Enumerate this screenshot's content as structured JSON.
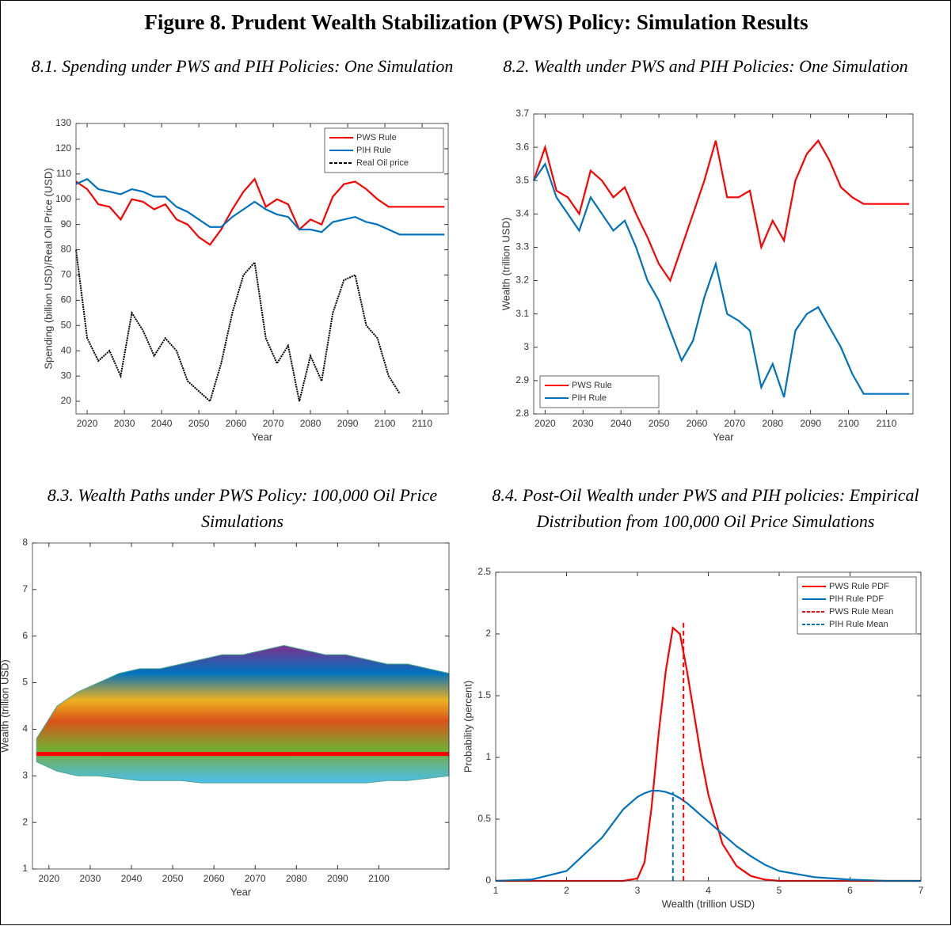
{
  "title": "Figure 8. Prudent Wealth Stabilization (PWS) Policy: Simulation Results",
  "chart_data": [
    {
      "type": "line",
      "title": "8.1. Spending under PWS and PIH Policies: One Simulation",
      "x_label": "Year",
      "y_label": "Spending (billion USD)/Real Oil Price (USD)",
      "x": [
        2017,
        2020,
        2023,
        2026,
        2029,
        2032,
        2035,
        2038,
        2041,
        2044,
        2047,
        2050,
        2053,
        2056,
        2059,
        2062,
        2065,
        2068,
        2071,
        2074,
        2077,
        2080,
        2083,
        2086,
        2089,
        2092,
        2095,
        2098,
        2101,
        2104,
        2107,
        2110,
        2113,
        2116
      ],
      "xlim": [
        2017,
        2117
      ],
      "xticks": [
        2020,
        2030,
        2040,
        2050,
        2060,
        2070,
        2080,
        2090,
        2100,
        2110
      ],
      "ylim": [
        15,
        130
      ],
      "yticks": [
        20,
        30,
        40,
        50,
        60,
        70,
        80,
        90,
        100,
        110,
        120,
        130
      ],
      "legend": "upper right",
      "series": [
        {
          "name": "PWS Rule",
          "color": "#ff0000",
          "values": [
            107,
            104,
            98,
            97,
            92,
            100,
            99,
            96,
            98,
            92,
            90,
            85,
            82,
            88,
            96,
            103,
            108,
            97,
            100,
            98,
            88,
            92,
            90,
            101,
            106,
            107,
            104,
            100,
            97,
            97,
            97,
            97,
            97,
            97
          ]
        },
        {
          "name": "PIH Rule",
          "color": "#0072bd",
          "values": [
            106,
            108,
            104,
            103,
            102,
            104,
            103,
            101,
            101,
            97,
            95,
            92,
            89,
            89,
            93,
            96,
            99,
            96,
            94,
            93,
            88,
            88,
            87,
            91,
            92,
            93,
            91,
            90,
            88,
            86,
            86,
            86,
            86,
            86
          ]
        },
        {
          "name": "Real Oil price",
          "color": "#000000",
          "dashed": true,
          "values": [
            80,
            45,
            36,
            40,
            30,
            55,
            48,
            38,
            45,
            40,
            28,
            24,
            20,
            35,
            55,
            70,
            75,
            45,
            35,
            42,
            20,
            38,
            28,
            55,
            68,
            70,
            50,
            45,
            30,
            23,
            null,
            null,
            null,
            null
          ]
        }
      ]
    },
    {
      "type": "line",
      "title": "8.2. Wealth under PWS and PIH Policies: One Simulation",
      "x_label": "Year",
      "y_label": "Wealth (trillion USD)",
      "x": [
        2017,
        2020,
        2023,
        2026,
        2029,
        2032,
        2035,
        2038,
        2041,
        2044,
        2047,
        2050,
        2053,
        2056,
        2059,
        2062,
        2065,
        2068,
        2071,
        2074,
        2077,
        2080,
        2083,
        2086,
        2089,
        2092,
        2095,
        2098,
        2101,
        2104,
        2107,
        2110,
        2113,
        2116
      ],
      "xlim": [
        2017,
        2117
      ],
      "xticks": [
        2020,
        2030,
        2040,
        2050,
        2060,
        2070,
        2080,
        2090,
        2100,
        2110
      ],
      "ylim": [
        2.8,
        3.7
      ],
      "yticks": [
        2.8,
        2.9,
        3,
        3.1,
        3.2,
        3.3,
        3.4,
        3.5,
        3.6,
        3.7
      ],
      "legend": "lower left",
      "series": [
        {
          "name": "PWS Rule",
          "color": "#ff0000",
          "values": [
            3.5,
            3.6,
            3.47,
            3.45,
            3.4,
            3.53,
            3.5,
            3.45,
            3.48,
            3.4,
            3.33,
            3.25,
            3.2,
            3.3,
            3.4,
            3.5,
            3.62,
            3.45,
            3.45,
            3.47,
            3.3,
            3.38,
            3.32,
            3.5,
            3.58,
            3.62,
            3.56,
            3.48,
            3.45,
            3.43,
            3.43,
            3.43,
            3.43,
            3.43
          ]
        },
        {
          "name": "PIH Rule",
          "color": "#0072bd",
          "values": [
            3.5,
            3.55,
            3.45,
            3.4,
            3.35,
            3.45,
            3.4,
            3.35,
            3.38,
            3.3,
            3.2,
            3.14,
            3.05,
            2.96,
            3.02,
            3.15,
            3.25,
            3.1,
            3.08,
            3.05,
            2.88,
            2.95,
            2.85,
            3.05,
            3.1,
            3.12,
            3.06,
            3,
            2.92,
            2.86,
            2.86,
            2.86,
            2.86,
            2.86
          ]
        }
      ]
    },
    {
      "type": "band",
      "title": "8.3. Wealth Paths under PWS Policy: 100,000 Oil Price Simulations",
      "x_label": "Year",
      "y_label": "Wealth (trillion USD)",
      "x": [
        2017,
        2022,
        2027,
        2032,
        2037,
        2042,
        2047,
        2052,
        2057,
        2062,
        2067,
        2072,
        2077,
        2082,
        2087,
        2092,
        2097,
        2102,
        2107,
        2112,
        2117
      ],
      "xlim": [
        2016,
        2117
      ],
      "xticks": [
        2020,
        2030,
        2040,
        2050,
        2060,
        2070,
        2080,
        2090,
        2100
      ],
      "ylim": [
        1,
        8
      ],
      "yticks": [
        1,
        2,
        3,
        4,
        5,
        6,
        7,
        8
      ],
      "band_color": "#4aa88c",
      "mean_color": "#ff0000",
      "upper": [
        3.8,
        4.5,
        4.8,
        5,
        5.2,
        5.3,
        5.3,
        5.4,
        5.5,
        5.6,
        5.6,
        5.7,
        5.8,
        5.7,
        5.6,
        5.6,
        5.5,
        5.4,
        5.4,
        5.3,
        5.2
      ],
      "lower": [
        3.3,
        3.1,
        3,
        3,
        2.95,
        2.9,
        2.9,
        2.9,
        2.85,
        2.85,
        2.85,
        2.85,
        2.85,
        2.85,
        2.85,
        2.85,
        2.85,
        2.9,
        2.9,
        2.95,
        3
      ],
      "mean": [
        3.47,
        3.47,
        3.47,
        3.47,
        3.47,
        3.47,
        3.47,
        3.47,
        3.47,
        3.47,
        3.47,
        3.47,
        3.47,
        3.47,
        3.47,
        3.47,
        3.47,
        3.47,
        3.47,
        3.47,
        3.47
      ]
    },
    {
      "type": "line",
      "title": "8.4. Post-Oil Wealth under PWS and PIH policies: Empirical Distribution from 100,000 Oil Price Simulations",
      "x_label": "Wealth (trillion USD)",
      "y_label": "Probability (percent)",
      "x": [
        1,
        1.5,
        2,
        2.5,
        2.8,
        3,
        3.1,
        3.2,
        3.3,
        3.4,
        3.5,
        3.6,
        3.7,
        3.8,
        3.9,
        4,
        4.2,
        4.4,
        4.6,
        4.8,
        5,
        5.5,
        6,
        6.5,
        7
      ],
      "xlim": [
        1,
        7
      ],
      "xticks": [
        1,
        2,
        3,
        4,
        5,
        6,
        7
      ],
      "ylim": [
        0,
        2.5
      ],
      "yticks": [
        0,
        0.5,
        1,
        1.5,
        2,
        2.5
      ],
      "legend": "upper right",
      "series": [
        {
          "name": "PWS Rule PDF",
          "color": "#ff0000",
          "values": [
            0,
            0,
            0,
            0,
            0,
            0.02,
            0.15,
            0.6,
            1.2,
            1.7,
            2.05,
            2,
            1.7,
            1.35,
            1,
            0.7,
            0.3,
            0.12,
            0.04,
            0.01,
            0,
            0,
            0,
            0,
            0
          ]
        },
        {
          "name": "PIH Rule PDF",
          "color": "#0072bd",
          "values": [
            0,
            0.01,
            0.08,
            0.35,
            0.58,
            0.68,
            0.71,
            0.73,
            0.73,
            0.72,
            0.7,
            0.67,
            0.63,
            0.58,
            0.53,
            0.48,
            0.38,
            0.28,
            0.2,
            0.13,
            0.08,
            0.03,
            0.01,
            0,
            0
          ]
        },
        {
          "name": "PWS Rule Mean",
          "color": "#ff0000",
          "dashed": true,
          "x": [
            3.65,
            3.65
          ],
          "values": [
            0,
            2.1
          ]
        },
        {
          "name": "PIH Rule Mean",
          "color": "#0072bd",
          "dashed": true,
          "x": [
            3.5,
            3.5
          ],
          "values": [
            0,
            0.72
          ]
        }
      ]
    }
  ]
}
